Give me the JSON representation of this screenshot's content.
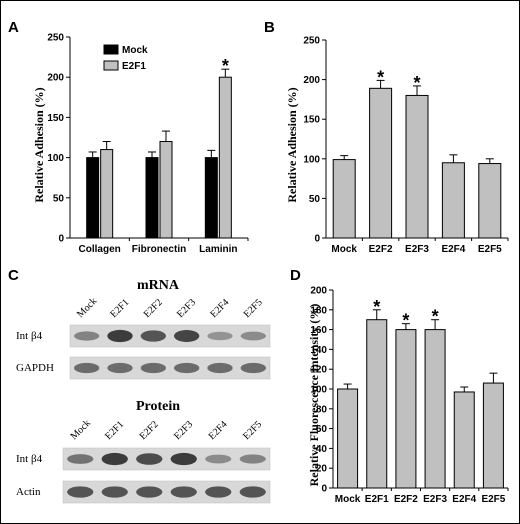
{
  "chart_data": [
    {
      "id": "A",
      "panel_label": "A",
      "type": "bar",
      "ylabel": "Relative Adhesion (%)",
      "xlabel": "",
      "ylim": [
        0,
        250
      ],
      "yticks": [
        0,
        50,
        100,
        150,
        200,
        250
      ],
      "categories": [
        "Collagen",
        "Fibronectin",
        "Laminin"
      ],
      "series": [
        {
          "name": "Mock",
          "color": "#000000",
          "values": [
            100,
            100,
            100
          ],
          "errors": [
            7,
            7,
            9
          ]
        },
        {
          "name": "E2F1",
          "color": "#c0c0c0",
          "values": [
            110,
            120,
            200
          ],
          "errors": [
            10,
            13,
            10
          ]
        }
      ],
      "significant": [
        {
          "series": 1,
          "index": 2
        }
      ],
      "legend_position": "top-left",
      "significance_marker": "*"
    },
    {
      "id": "B",
      "panel_label": "B",
      "type": "bar",
      "ylabel": "Relative Adhesion (%)",
      "xlabel": "",
      "ylim": [
        0,
        250
      ],
      "yticks": [
        0,
        50,
        100,
        150,
        200,
        250
      ],
      "categories": [
        "Mock",
        "E2F2",
        "E2F3",
        "E2F4",
        "E2F5"
      ],
      "series": [
        {
          "color": "#c0c0c0",
          "values": [
            99,
            189,
            180,
            95,
            94
          ],
          "errors": [
            5,
            10,
            12,
            10,
            6
          ]
        }
      ],
      "significant": [
        {
          "series": 0,
          "index": 1
        },
        {
          "series": 0,
          "index": 2
        }
      ],
      "significance_marker": "*"
    },
    {
      "id": "D",
      "panel_label": "D",
      "type": "bar",
      "ylabel": "Relative Fluorescence Intensity (%)",
      "xlabel": "",
      "ylim": [
        0,
        200
      ],
      "yticks": [
        0,
        20,
        40,
        60,
        80,
        100,
        120,
        140,
        160,
        180,
        200
      ],
      "categories": [
        "Mock",
        "E2F1",
        "E2F2",
        "E2F3",
        "E2F4",
        "E2F5"
      ],
      "series": [
        {
          "color": "#c0c0c0",
          "values": [
            100,
            170,
            160,
            160,
            97,
            106
          ],
          "errors": [
            5,
            10,
            6,
            10,
            5,
            10
          ]
        }
      ],
      "significant": [
        {
          "series": 0,
          "index": 1
        },
        {
          "series": 0,
          "index": 2
        },
        {
          "series": 0,
          "index": 3
        }
      ],
      "significance_marker": "*"
    }
  ],
  "blots": {
    "panel_label": "C",
    "mrna": {
      "title": "mRNA",
      "lanes": [
        "Mock",
        "E2F1",
        "E2F2",
        "E2F3",
        "E2F4",
        "E2F5"
      ],
      "rows": [
        {
          "label": "Int β4",
          "intensity": [
            0.45,
            0.9,
            0.75,
            0.85,
            0.35,
            0.4
          ]
        },
        {
          "label": "GAPDH",
          "intensity": [
            0.6,
            0.6,
            0.6,
            0.6,
            0.6,
            0.6
          ]
        }
      ]
    },
    "protein": {
      "title": "Protein",
      "lanes": [
        "Mock",
        "E2F1",
        "E2F2",
        "E2F3",
        "E2F4",
        "E2F5"
      ],
      "rows": [
        {
          "label": "Int β4",
          "intensity": [
            0.55,
            0.9,
            0.8,
            0.9,
            0.4,
            0.45
          ]
        },
        {
          "label": "Actin",
          "intensity": [
            0.75,
            0.75,
            0.75,
            0.75,
            0.75,
            0.75
          ]
        }
      ]
    }
  }
}
